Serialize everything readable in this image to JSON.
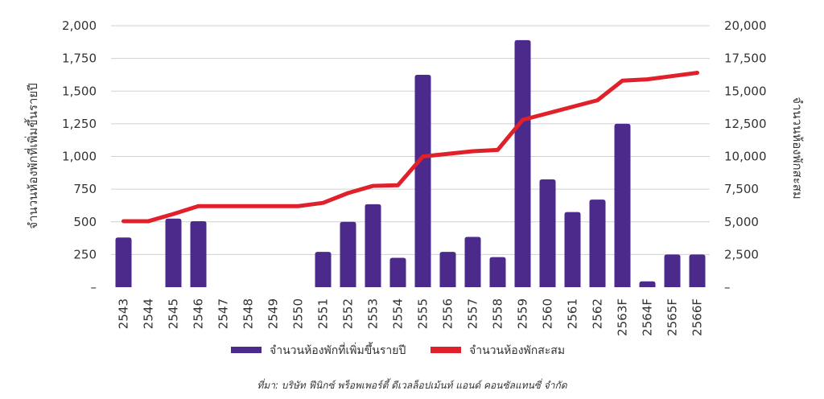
{
  "chart_data": {
    "type": "bar",
    "categories": [
      "2543",
      "2544",
      "2545",
      "2546",
      "2547",
      "2548",
      "2549",
      "2550",
      "2551",
      "2552",
      "2553",
      "2554",
      "2555",
      "2556",
      "2557",
      "2558",
      "2559",
      "2560",
      "2561",
      "2562",
      "2563F",
      "2564F",
      "2565F",
      "2566F"
    ],
    "series": [
      {
        "name": "จำนวนห้องพักที่เพิ่มขึ้นรายปี",
        "type": "bar",
        "axis": "left",
        "color": "#4b2a8c",
        "values": [
          380,
          0,
          525,
          505,
          0,
          0,
          0,
          0,
          270,
          500,
          635,
          225,
          1625,
          270,
          385,
          230,
          1890,
          825,
          575,
          670,
          1250,
          45,
          250,
          250
        ]
      },
      {
        "name": "จำนวนห้องพักสะสม",
        "type": "line",
        "axis": "right",
        "color": "#e0202a",
        "values": [
          5050,
          5050,
          5600,
          6200,
          6200,
          6200,
          6200,
          6200,
          6450,
          7200,
          7750,
          7800,
          10000,
          10200,
          10400,
          10500,
          12800,
          13300,
          13800,
          14300,
          15800,
          15900,
          16150,
          16400
        ]
      }
    ],
    "left_axis": {
      "label": "จำนวนห้องพักที่เพิ่มขึ้นรายปี",
      "ylim": [
        0,
        2000
      ],
      "ticks": [
        0,
        250,
        500,
        750,
        1000,
        1250,
        1500,
        1750,
        2000
      ],
      "tick_labels": [
        "–",
        "250",
        "500",
        "750",
        "1,000",
        "1,250",
        "1,500",
        "1,750",
        "2,000"
      ]
    },
    "right_axis": {
      "label": "จำนวนห้องพักสะสม",
      "ylim": [
        0,
        20000
      ],
      "ticks": [
        0,
        2500,
        5000,
        7500,
        10000,
        12500,
        15000,
        17500,
        20000
      ],
      "tick_labels": [
        "–",
        "2,500",
        "5,000",
        "7,500",
        "10,000",
        "12,500",
        "15,000",
        "17,500",
        "20,000"
      ]
    },
    "grid": true,
    "legend": "bottom",
    "source": "ที่มา: บริษัท ฟีนิกซ์ พร็อพเพอร์ตี้ ดีเวลล็อปเม้นท์ แอนด์ คอนซัลแทนซี่ จำกัด"
  }
}
